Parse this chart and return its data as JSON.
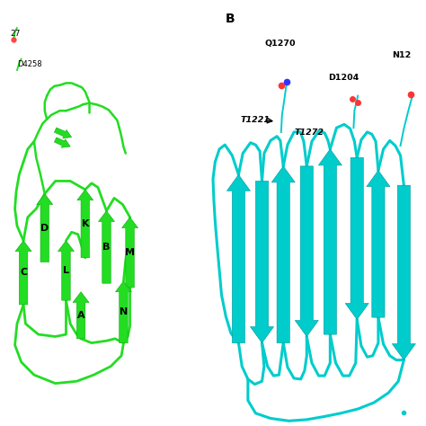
{
  "fig_width": 4.74,
  "fig_height": 4.74,
  "dpi": 100,
  "bg_color": "#ffffff",
  "panel_A": {
    "structure_color": "#22dd22",
    "structure_color_dark": "#11aa11",
    "strand_labels": [
      "A",
      "B",
      "C",
      "D",
      "K",
      "L",
      "M",
      "N"
    ]
  },
  "panel_B": {
    "structure_color": "#00cccc",
    "structure_color_dark": "#009999"
  }
}
